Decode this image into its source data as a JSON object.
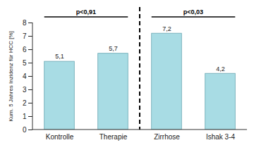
{
  "chart_data": {
    "type": "bar",
    "categories": [
      "Kontrolle",
      "Therapie",
      "Zirrhose",
      "Ishak 3-4"
    ],
    "values": [
      5.1,
      5.7,
      7.2,
      4.2
    ],
    "value_labels": [
      "5,1",
      "5,7",
      "7,2",
      "4,2"
    ],
    "color": "#a8dce4",
    "y_label": "Kum. 5 Jahres Inzidenz für HCC [%]",
    "ylim": [
      0,
      8
    ],
    "yticks": [
      0,
      1,
      2,
      3,
      4,
      5,
      6,
      7,
      8
    ],
    "grid": false,
    "data_labels": true,
    "annotations": [
      {
        "text": "p<0,91",
        "categories": [
          "Kontrolle",
          "Therapie"
        ]
      },
      {
        "text": "p<0,03",
        "categories": [
          "Zirrhose",
          "Ishak 3-4"
        ]
      }
    ]
  }
}
